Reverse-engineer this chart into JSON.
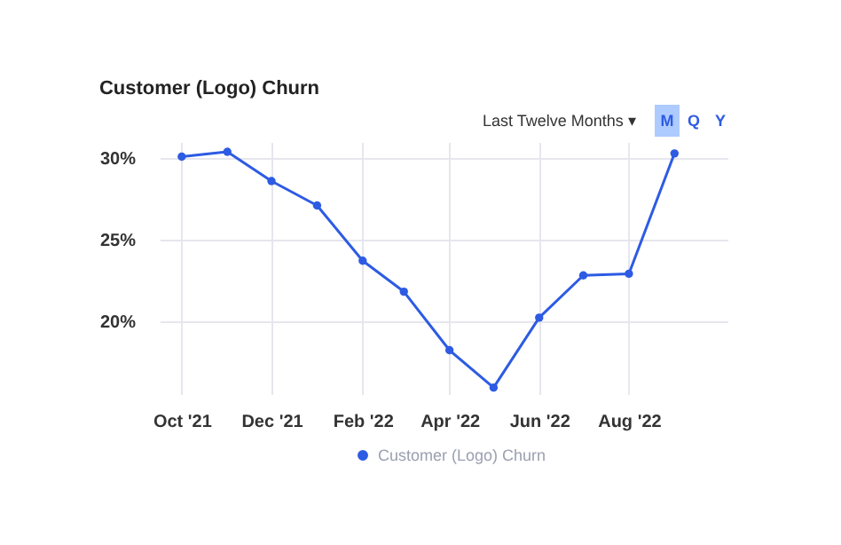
{
  "chart_data": {
    "type": "line",
    "title": "Customer (Logo) Churn",
    "annotations": [
      "Last Twelve Months ▾",
      "M",
      "Q",
      "Y"
    ],
    "x": [
      "2021-10-01",
      "2021-11-01",
      "2021-12-01",
      "2022-01-01",
      "2022-02-01",
      "2022-03-01",
      "2022-04-01",
      "2022-05-01",
      "2022-06-01",
      "2022-07-01",
      "2022-08-01",
      "2022-09-01"
    ],
    "series": [
      {
        "name": "Customer (Logo) Churn",
        "color": "#2d5be3",
        "values": [
          30.1,
          30.4,
          28.6,
          27.1,
          23.7,
          21.8,
          18.2,
          15.9,
          20.2,
          22.8,
          22.9,
          30.3
        ]
      }
    ],
    "xlim": [
      "2021-09-16",
      "2022-10-07"
    ],
    "xticks": [
      {
        "value": "2021-10-01",
        "label": "Oct '21"
      },
      {
        "value": "2021-12-01",
        "label": "Dec '21"
      },
      {
        "value": "2022-02-01",
        "label": "Feb '22"
      },
      {
        "value": "2022-04-01",
        "label": "Apr '22"
      },
      {
        "value": "2022-06-01",
        "label": "Jun '22"
      },
      {
        "value": "2022-08-01",
        "label": "Aug '22"
      }
    ],
    "ylim": [
      15.5,
      31
    ],
    "yticks": [
      {
        "value": 20,
        "label": "20%"
      },
      {
        "value": 25,
        "label": "25%"
      },
      {
        "value": 30,
        "label": "30%"
      }
    ],
    "grid": true,
    "legend": "bottom",
    "marker": "circle",
    "line_style": "solid"
  }
}
